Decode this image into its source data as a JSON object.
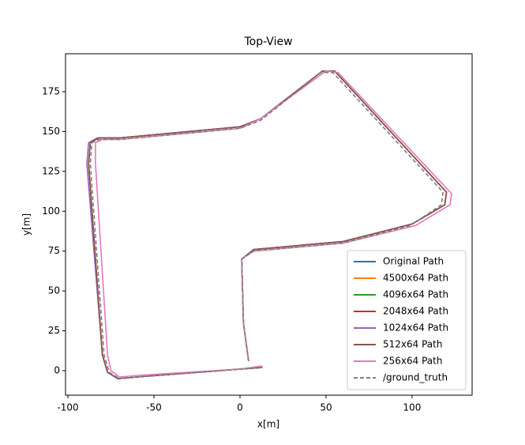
{
  "chart_data": {
    "type": "line",
    "title": "Top-View",
    "x_label": "x[m]",
    "y_label": "y[m]",
    "xlim": [
      -101.4,
      134.9
    ],
    "ylim": [
      -15.4,
      198.8
    ],
    "xticks": [
      -100,
      -50,
      0,
      50,
      100
    ],
    "yticks": [
      0,
      25,
      50,
      75,
      100,
      125,
      150,
      175
    ],
    "grid": false,
    "legend": "lower right",
    "series": [
      {
        "name": "Original Path",
        "color": "#1f77b4",
        "x": [
          13,
          0,
          -60,
          -71,
          -77,
          -80,
          -88,
          -87,
          -82,
          -70,
          0,
          12,
          48,
          55,
          120,
          119,
          100,
          60,
          8,
          1,
          2,
          5
        ],
        "values": [
          2,
          1,
          -4,
          -5,
          -1,
          10,
          130,
          143,
          146,
          146,
          153,
          158,
          188,
          188,
          112,
          104,
          92,
          81,
          76,
          70,
          30,
          6
        ]
      },
      {
        "name": "4500x64 Path",
        "color": "#ff7f0e",
        "x": [
          13,
          0,
          -60,
          -71,
          -77,
          -80,
          -88,
          -87,
          -82,
          -70,
          0,
          12,
          48,
          55,
          120,
          119,
          100,
          60,
          8,
          1,
          2,
          5
        ],
        "values": [
          2,
          1,
          -4,
          -5,
          -1,
          10,
          130,
          143,
          146,
          146,
          153,
          158,
          188,
          188,
          112,
          104,
          92,
          81,
          76,
          70,
          30,
          6
        ]
      },
      {
        "name": "4096x64 Path",
        "color": "#2ca02c",
        "x": [
          13,
          0,
          -60,
          -71,
          -77,
          -80,
          -88,
          -87,
          -82,
          -70,
          0,
          12,
          48,
          55,
          120,
          119,
          100,
          60,
          8,
          1,
          2,
          5
        ],
        "values": [
          2,
          1,
          -4,
          -5,
          -1,
          10,
          130,
          143,
          146,
          146,
          153,
          158,
          188,
          188,
          112,
          104,
          92,
          81,
          76,
          70,
          30,
          6
        ]
      },
      {
        "name": "2048x64 Path",
        "color": "#d62728",
        "x": [
          13,
          0,
          -60,
          -71,
          -77,
          -80,
          -88,
          -87,
          -82,
          -70,
          0,
          12,
          48,
          55,
          120,
          119,
          100,
          60,
          8,
          1,
          2,
          5
        ],
        "values": [
          2,
          1,
          -4,
          -5,
          -1,
          10,
          130,
          143,
          146,
          146,
          153,
          158,
          188,
          188,
          112,
          104,
          92,
          81,
          76,
          70,
          30,
          6
        ]
      },
      {
        "name": "1024x64 Path",
        "color": "#9467bd",
        "x": [
          13,
          0,
          -60,
          -71,
          -77,
          -80,
          -89,
          -88,
          -83,
          -70,
          0,
          12,
          48,
          55,
          120,
          119,
          100,
          60,
          8,
          1,
          2,
          5
        ],
        "values": [
          2,
          1,
          -4,
          -5,
          -1,
          10,
          130,
          143,
          146,
          146,
          153,
          158,
          188,
          188,
          112,
          104,
          92,
          81,
          76,
          70,
          30,
          6
        ]
      },
      {
        "name": "512x64 Path",
        "color": "#8c564b",
        "x": [
          13,
          0,
          -60,
          -71,
          -77,
          -80,
          -88,
          -87,
          -82,
          -70,
          0,
          12,
          48,
          55,
          120,
          119,
          100,
          60,
          8,
          1,
          2,
          5
        ],
        "values": [
          2,
          1,
          -4,
          -5,
          -1,
          10,
          130,
          143,
          146,
          146,
          153,
          158,
          188,
          188,
          112,
          104,
          92,
          81,
          76,
          70,
          30,
          6
        ]
      },
      {
        "name": "256x64 Path",
        "color": "#e377c2",
        "x": [
          13,
          0,
          -60,
          -70,
          -75,
          -77,
          -84,
          -84,
          -80,
          -70,
          0,
          12,
          50,
          57,
          123,
          122,
          102,
          60,
          8,
          1,
          2,
          5
        ],
        "values": [
          3,
          1,
          -3,
          -4,
          0,
          10,
          130,
          143,
          145,
          145,
          152,
          158,
          188,
          187,
          111,
          104,
          91,
          80,
          75,
          70,
          30,
          6
        ]
      },
      {
        "name": "/ground_truth",
        "color": "#7f7f7f",
        "linestyle": "dashed",
        "x": [
          13,
          0,
          -60,
          -70,
          -76,
          -79,
          -87,
          -86,
          -82,
          -70,
          0,
          12,
          47,
          54,
          118,
          117,
          99,
          60,
          8,
          1,
          2,
          5
        ],
        "values": [
          2,
          1,
          -4,
          -5,
          -1,
          10,
          130,
          143,
          145,
          145,
          152,
          157,
          187,
          187,
          112,
          104,
          91,
          80,
          75,
          70,
          30,
          6
        ]
      }
    ]
  }
}
